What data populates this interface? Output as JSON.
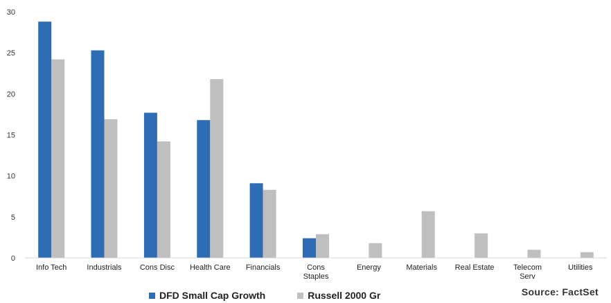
{
  "chart_data": {
    "type": "bar",
    "categories": [
      "Info Tech",
      "Industrials",
      "Cons Disc",
      "Health Care",
      "Financials",
      "Cons\nStaples",
      "Energy",
      "Materials",
      "Real Estate",
      "Telecom\nServ",
      "Utilities"
    ],
    "series": [
      {
        "name": "DFD Small Cap Growth",
        "color": "#2e6db4",
        "values": [
          28.8,
          25.3,
          17.7,
          16.8,
          9.1,
          2.4,
          0,
          0,
          0,
          0,
          0
        ]
      },
      {
        "name": "Russell 2000 Gr",
        "color": "#bfbfbf",
        "values": [
          24.2,
          16.9,
          14.2,
          21.8,
          8.3,
          2.9,
          1.8,
          5.7,
          3.0,
          1.0,
          0.7
        ]
      }
    ],
    "yticks": [
      0,
      5,
      10,
      15,
      20,
      25,
      30
    ],
    "ylim": [
      0,
      30
    ],
    "grid": false,
    "legend_position": "bottom-left",
    "source": "Source: FactSet"
  }
}
